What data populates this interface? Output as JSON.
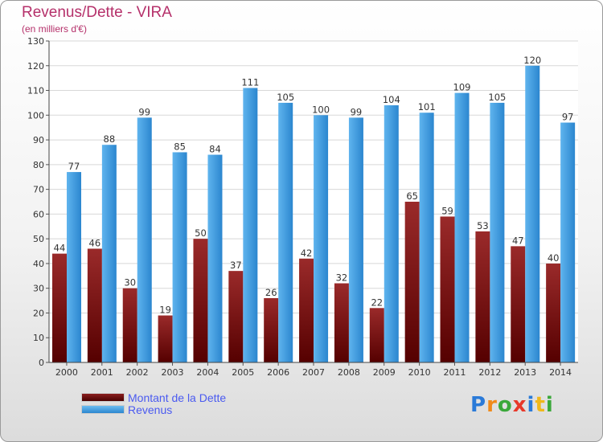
{
  "header": {
    "title": "Revenus/Dette - VIRA",
    "subtitle": "(en milliers d'€)"
  },
  "chart_data": {
    "type": "bar",
    "title": "Revenus/Dette - VIRA",
    "subtitle": "(en milliers d'€)",
    "categories": [
      "2000",
      "2001",
      "2002",
      "2003",
      "2004",
      "2005",
      "2006",
      "2007",
      "2008",
      "2009",
      "2010",
      "2011",
      "2012",
      "2013",
      "2014"
    ],
    "series": [
      {
        "name": "Montant de la Dette",
        "color": "#7a1515",
        "values": [
          44,
          46,
          30,
          19,
          50,
          37,
          26,
          42,
          32,
          22,
          65,
          59,
          53,
          47,
          40
        ]
      },
      {
        "name": "Revenus",
        "color": "#3d9ae0",
        "values": [
          77,
          88,
          99,
          85,
          84,
          111,
          105,
          100,
          99,
          104,
          101,
          109,
          105,
          120,
          97
        ]
      }
    ],
    "ylim": [
      0,
      130
    ],
    "yticks": [
      0,
      10,
      20,
      30,
      40,
      50,
      60,
      70,
      80,
      90,
      100,
      110,
      120,
      130
    ],
    "grid": true,
    "legend_position": "bottom-left"
  },
  "legend": {
    "items": [
      {
        "label": "Montant de la Dette",
        "color": "#6b1111"
      },
      {
        "label": "Revenus",
        "color": "#3d9ae0"
      }
    ]
  },
  "logo": {
    "letters": [
      "P",
      "r",
      "o",
      "x",
      "i",
      "t",
      "i"
    ],
    "colors": [
      "#2a7ad8",
      "#f08a1a",
      "#3aa83a",
      "#e8382a",
      "#2a7ad8",
      "#f0b81a",
      "#3aa83a"
    ]
  }
}
